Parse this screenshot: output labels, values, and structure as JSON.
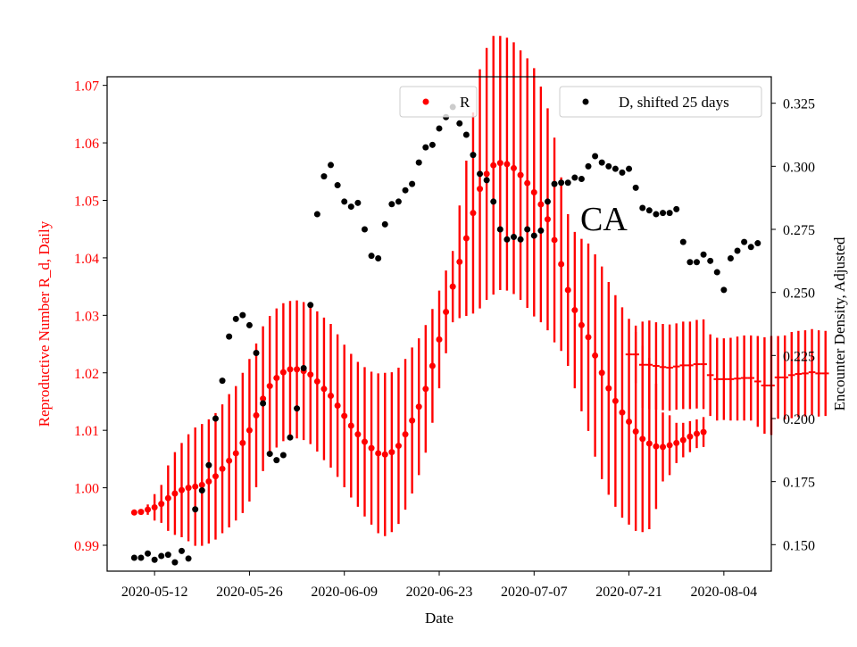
{
  "chart_data": {
    "type": "scatter",
    "xlabel": "Date",
    "ylabel": "Reproductive Number R_d, Daily",
    "y2label": "Encounter Density, Adjusted",
    "annotation": "CA",
    "xlim": [
      "2020-05-05",
      "2020-08-11"
    ],
    "ylim": [
      0.9855,
      1.0715
    ],
    "y2lim": [
      0.1395,
      0.3355
    ],
    "x_ticks": [
      "2020-05-12",
      "2020-05-26",
      "2020-06-09",
      "2020-06-23",
      "2020-07-07",
      "2020-07-21",
      "2020-08-04"
    ],
    "y_ticks": [
      "0.99",
      "1.00",
      "1.01",
      "1.02",
      "1.03",
      "1.04",
      "1.05",
      "1.06",
      "1.07"
    ],
    "y2_ticks": [
      "0.150",
      "0.175",
      "0.200",
      "0.225",
      "0.250",
      "0.275",
      "0.300",
      "0.325"
    ],
    "colors": {
      "r": "#ff0000",
      "d": "#000000",
      "axis_left": "#ff0000"
    },
    "legend_r": {
      "label": "R",
      "position": "top-center"
    },
    "legend_d": {
      "label": "D, shifted 25 days",
      "position": "top-right"
    },
    "series": [
      {
        "name": "R",
        "axis": "left",
        "style": "points-with-errorbars",
        "start": "2020-05-09",
        "values": [
          0.9957,
          0.9958,
          0.9962,
          0.9966,
          0.9972,
          0.9982,
          0.999,
          0.9996,
          1.0,
          1.0002,
          1.0005,
          1.0011,
          1.002,
          1.0033,
          1.0047,
          1.006,
          1.0078,
          1.01,
          1.0126,
          1.0155,
          1.0177,
          1.0191,
          1.0201,
          1.0206,
          1.0206,
          1.0203,
          1.0197,
          1.0185,
          1.0172,
          1.016,
          1.0143,
          1.0125,
          1.0108,
          1.0093,
          1.008,
          1.0069,
          1.006,
          1.0058,
          1.0062,
          1.0073,
          1.0093,
          1.0117,
          1.0141,
          1.0172,
          1.0212,
          1.0258,
          1.0306,
          1.035,
          1.0393,
          1.0434,
          1.0478,
          1.052,
          1.0546,
          1.0561,
          1.0565,
          1.0563,
          1.0556,
          1.0544,
          1.053,
          1.0514,
          1.0493,
          1.0467,
          1.0431,
          1.0389,
          1.0344,
          1.0309,
          1.0283,
          1.0262,
          1.023,
          1.02,
          1.0173,
          1.0151,
          1.0131,
          1.0115,
          1.0098,
          1.0085,
          1.0077,
          1.0072,
          1.0071,
          1.0074,
          1.0078,
          1.0083,
          1.0089,
          1.0094,
          1.0097
        ],
        "errors": [
          0.0004,
          0.0004,
          0.0009,
          0.0023,
          0.0033,
          0.0057,
          0.0072,
          0.0082,
          0.0093,
          0.0103,
          0.0106,
          0.0108,
          0.011,
          0.0112,
          0.0116,
          0.0117,
          0.0122,
          0.0124,
          0.0125,
          0.0126,
          0.0122,
          0.0121,
          0.012,
          0.0119,
          0.012,
          0.012,
          0.0121,
          0.0122,
          0.0124,
          0.0125,
          0.0124,
          0.0124,
          0.0125,
          0.0126,
          0.013,
          0.0133,
          0.0139,
          0.0142,
          0.0139,
          0.0136,
          0.0131,
          0.0127,
          0.0119,
          0.0111,
          0.0099,
          0.0085,
          0.0072,
          0.0062,
          0.0098,
          0.0135,
          0.0175,
          0.0208,
          0.0219,
          0.0225,
          0.0221,
          0.022,
          0.0219,
          0.0217,
          0.0217,
          0.0216,
          0.0205,
          0.0193,
          0.0178,
          0.0151,
          0.0132,
          0.0136,
          0.015,
          0.0163,
          0.0176,
          0.0185,
          0.0185,
          0.0184,
          0.0183,
          0.0179,
          0.0173,
          0.0162,
          0.0149,
          0.0109,
          0.006,
          0.0052,
          0.0035,
          0.003,
          0.0027,
          0.0025,
          0.0026
        ]
      },
      {
        "name": "R",
        "axis": "left",
        "style": "step-with-errorbars",
        "start": "2020-07-21",
        "values": [
          1.0232,
          1.0232,
          1.0214,
          1.0214,
          1.0212,
          1.021,
          1.0209,
          1.0211,
          1.0213,
          1.0213,
          1.0215,
          1.0215,
          1.0196,
          1.0189,
          1.0189,
          1.0189,
          1.019,
          1.0191,
          1.0191,
          1.0185,
          1.0178,
          1.0178,
          1.0192,
          1.0192,
          1.0196,
          1.0198,
          1.0199,
          1.0201,
          1.0199,
          1.0199
        ],
        "errors": [
          0.0,
          0.005,
          0.0075,
          0.0077,
          0.0076,
          0.0075,
          0.0075,
          0.0075,
          0.0076,
          0.0076,
          0.0077,
          0.0078,
          0.0071,
          0.0072,
          0.0071,
          0.0072,
          0.0073,
          0.0074,
          0.0074,
          0.0079,
          0.0084,
          0.0086,
          0.0072,
          0.0073,
          0.0075,
          0.0075,
          0.0075,
          0.0075,
          0.0075,
          0.0074
        ]
      },
      {
        "name": "D, shifted 25 days",
        "axis": "right",
        "style": "points",
        "start": "2020-05-09",
        "values": [
          0.1448,
          0.1448,
          0.1465,
          0.144,
          0.1455,
          0.146,
          0.143,
          0.1475,
          0.1445,
          0.164,
          0.1715,
          0.1815,
          0.2,
          0.215,
          0.2325,
          0.2395,
          0.241,
          0.237,
          0.226,
          0.206,
          0.186,
          0.1835,
          0.1855,
          0.1925,
          0.204,
          0.22,
          0.245,
          0.281,
          0.296,
          0.3005,
          0.2925,
          0.286,
          0.284,
          0.2855,
          0.275,
          0.2645,
          0.2635,
          0.277,
          0.285,
          0.286,
          0.2905,
          0.293,
          0.3015,
          0.3075,
          0.3085,
          0.315,
          0.3195,
          0.3235,
          0.317,
          0.3125,
          0.3045,
          0.297,
          0.2945,
          0.286,
          0.275,
          0.271,
          0.272,
          0.271,
          0.275,
          0.2725,
          0.2745,
          0.286,
          0.293,
          0.2935,
          0.2935,
          0.2955,
          0.295,
          0.3,
          0.304,
          0.3015,
          0.3,
          0.299,
          0.2975,
          0.299,
          0.2915,
          0.2835,
          0.2825,
          0.281,
          0.2815,
          0.2815,
          0.283,
          0.27,
          0.262,
          0.262,
          0.265,
          0.2625,
          0.258,
          0.251,
          0.2635,
          0.2665,
          0.27,
          0.268,
          0.2695
        ]
      }
    ]
  }
}
